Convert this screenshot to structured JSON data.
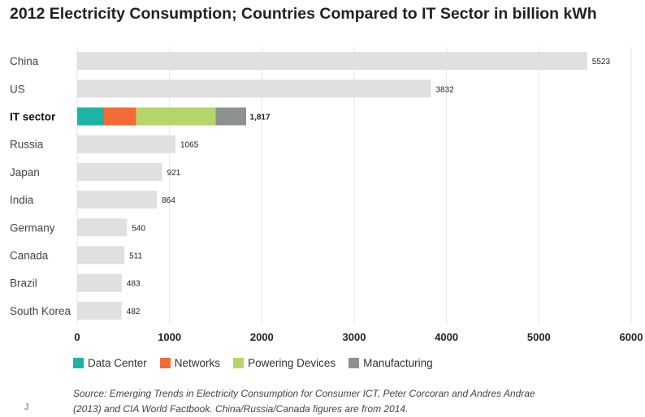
{
  "chart_data": {
    "type": "bar",
    "orientation": "horizontal",
    "title": "2012 Electricity Consumption; Countries Compared to IT Sector in billion kWh",
    "xlabel": "",
    "ylabel": "",
    "xlim": [
      0,
      6000
    ],
    "xticks": [
      "0",
      "1000",
      "2000",
      "3000",
      "4000",
      "5000",
      "6000"
    ],
    "grid": true,
    "legend_position": "bottom",
    "categories": [
      "China",
      "US",
      "IT sector",
      "Russia",
      "Japan",
      "India",
      "Germany",
      "Canada",
      "Brazil",
      "South Korea"
    ],
    "values": [
      5523,
      3832,
      1817,
      1065,
      921,
      864,
      540,
      511,
      483,
      482
    ],
    "value_labels": [
      "5523",
      "3832",
      "1,817",
      "1065",
      "921",
      "864",
      "540",
      "511",
      "483",
      "482"
    ],
    "bold_category": "IT sector",
    "bar_color": "#e0e0e0",
    "stacked_breakdown": {
      "category": "IT sector",
      "segments": [
        {
          "name": "Data Center",
          "value": 290,
          "color": "#1fb3a5"
        },
        {
          "name": "Networks",
          "value": 350,
          "color": "#f26b38"
        },
        {
          "name": "Powering Devices",
          "value": 860,
          "color": "#b5d56a"
        },
        {
          "name": "Manufacturing",
          "value": 330,
          "color": "#8c938f"
        }
      ]
    }
  },
  "source_line1": "Source: Emerging Trends in Electricity Consumption for Consumer ICT, Peter Corcoran and Andres Andrae",
  "source_line2": "(2013) and CIA World Factbook. China/Russia/Canada figures are from 2014.",
  "corner_mark": "J"
}
